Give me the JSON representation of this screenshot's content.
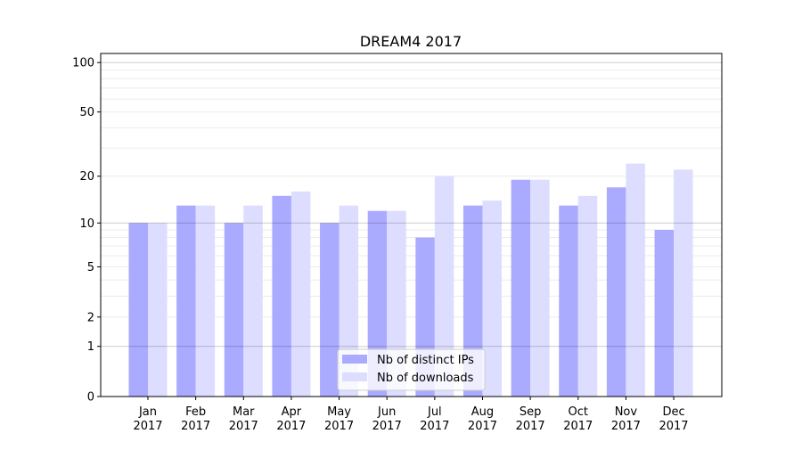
{
  "chart_data": {
    "type": "bar",
    "title": "DREAM4 2017",
    "xlabel": "",
    "ylabel": "",
    "yscale": "log(1+y)",
    "ylim": [
      0,
      110
    ],
    "yticks": [
      0,
      1,
      2,
      5,
      10,
      20,
      50,
      100
    ],
    "grid": true,
    "legend_position": "bottom-center",
    "categories": [
      "Jan\n2017",
      "Feb\n2017",
      "Mar\n2017",
      "Apr\n2017",
      "May\n2017",
      "Jun\n2017",
      "Jul\n2017",
      "Aug\n2017",
      "Sep\n2017",
      "Oct\n2017",
      "Nov\n2017",
      "Dec\n2017"
    ],
    "series": [
      {
        "name": "Nb of distinct IPs",
        "color": "#aaaaff",
        "values": [
          10,
          13,
          10,
          15,
          10,
          12,
          8,
          13,
          19,
          13,
          17,
          9
        ]
      },
      {
        "name": "Nb of downloads",
        "color": "#ddddff",
        "values": [
          10,
          13,
          13,
          16,
          13,
          12,
          20,
          14,
          19,
          15,
          24,
          22
        ]
      }
    ]
  }
}
